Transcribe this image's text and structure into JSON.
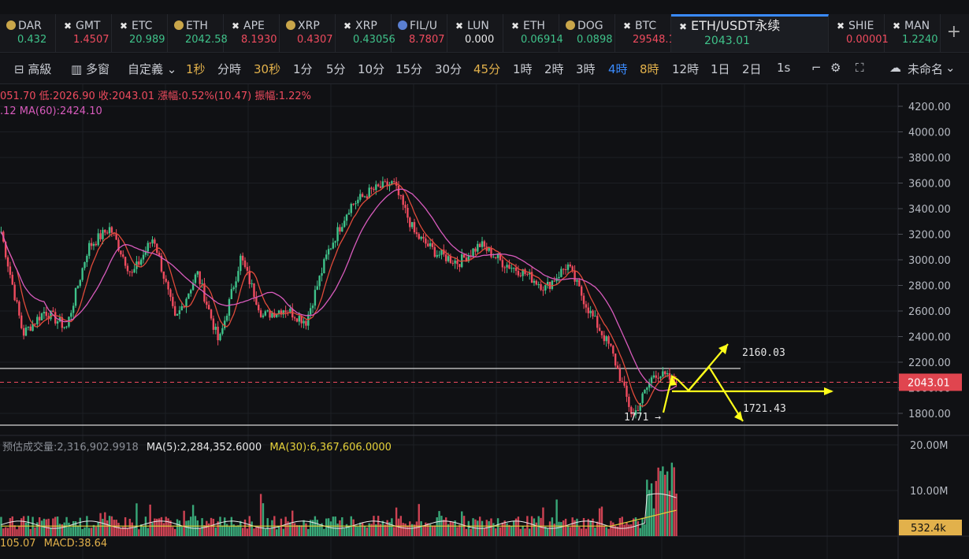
{
  "tickers": [
    {
      "symbol": "DAR",
      "price": "0.432",
      "dir": "up",
      "icon": "coin-icon"
    },
    {
      "symbol": "GMT",
      "price": "1.4507",
      "dir": "dn",
      "icon": "cross-icon"
    },
    {
      "symbol": "ETC",
      "price": "20.989",
      "dir": "up",
      "icon": "cross-icon"
    },
    {
      "symbol": "ETH",
      "price": "2042.58",
      "dir": "up",
      "icon": "coin-icon"
    },
    {
      "symbol": "APE",
      "price": "8.1930",
      "dir": "dn",
      "icon": "cross-icon"
    },
    {
      "symbol": "XRP",
      "price": "0.4307",
      "dir": "dn",
      "icon": "coin-icon"
    },
    {
      "symbol": "XRP",
      "price": "0.43056",
      "dir": "up",
      "icon": "cross-icon"
    },
    {
      "symbol": "FIL/U",
      "price": "8.7807",
      "dir": "dn",
      "icon": "coin-icon"
    },
    {
      "symbol": "LUN",
      "price": "0.000",
      "dir": "wh",
      "icon": "cross-icon"
    },
    {
      "symbol": "ETH",
      "price": "0.06914",
      "dir": "up",
      "icon": "cross-icon"
    },
    {
      "symbol": "DOG",
      "price": "0.0898",
      "dir": "up",
      "icon": "coin-icon"
    },
    {
      "symbol": "BTC",
      "price": "29548.1",
      "dir": "dn",
      "icon": "cross-icon"
    },
    {
      "symbol": "ETH/USDT永续",
      "price": "2043.01",
      "dir": "up",
      "icon": "cross-icon",
      "active": true
    },
    {
      "symbol": "SHIE",
      "price": "0.00001",
      "dir": "dn",
      "icon": "cross-icon"
    },
    {
      "symbol": "MAN",
      "price": "1.2240",
      "dir": "up",
      "icon": "cross-icon"
    }
  ],
  "toolbar": {
    "items": [
      "高級",
      "多窗",
      "自定義",
      "1秒",
      "分時",
      "30秒",
      "1分",
      "5分",
      "10分",
      "15分",
      "30分",
      "45分",
      "1時",
      "2時",
      "3時",
      "4時",
      "8時",
      "12時",
      "1日",
      "2日",
      "1s"
    ],
    "active": "4時",
    "highlighted": [
      "1秒",
      "30秒",
      "45分",
      "8時"
    ],
    "layout_name": "未命名"
  },
  "info": {
    "ohlc": "051.70 低:2026.90 收:2043.01 漲幅:0.52%(10.47) 振幅:1.22%",
    "ma": ".12 MA(60):2424.10",
    "volume_label": "预估成交量:2,316,902.9918",
    "vol_ma5": "MA(5):2,284,352.6000",
    "vol_ma30": "MA(30):6,367,606.0000",
    "macd_left": "105.07",
    "macd": "MACD:38.64"
  },
  "price_axis": [
    "4200.00",
    "4000.00",
    "3800.00",
    "3600.00",
    "3400.00",
    "3200.00",
    "3000.00",
    "2800.00",
    "2600.00",
    "2400.00",
    "2200.00",
    "2000.00",
    "1800.00"
  ],
  "current_price": "2043.01",
  "volume_axis": [
    "20.00M",
    "10.00M"
  ],
  "current_volume": "532.4k",
  "annotations": {
    "upper": "2160.03",
    "lower": "1721.43",
    "low": "1771"
  },
  "colors": {
    "up": "#3fc28a",
    "down": "#ef4b5e",
    "ma_fast": "#e04a3a",
    "ma_slow": "#d85bbd",
    "arrow": "#ffff1a",
    "vol_ma5": "#e8e8e8",
    "vol_ma30": "#e6d23a"
  },
  "chart_data": {
    "type": "candlestick",
    "series_close_approx": [
      3220,
      2420,
      2600,
      2470,
      3100,
      3250,
      2880,
      3180,
      2520,
      2900,
      2350,
      3020,
      2560,
      2620,
      2520,
      3060,
      3420,
      3540,
      3600,
      3200,
      3050,
      2980,
      3120,
      2980,
      2900,
      2780,
      2960,
      2600,
      2300,
      1771,
      2120,
      2043
    ],
    "ylim": [
      1700,
      4250
    ]
  }
}
